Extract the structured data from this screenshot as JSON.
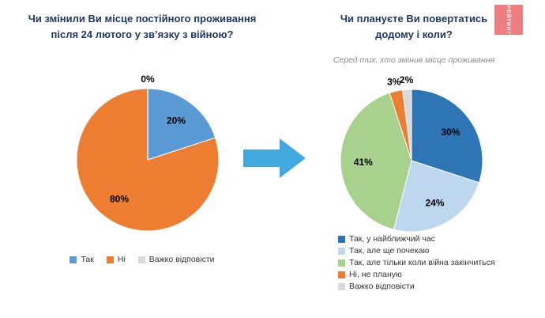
{
  "logo": {
    "text": "РЕЙТИНГ",
    "color": "#ee7f81"
  },
  "arrow": {
    "color": "#41a9dd"
  },
  "chart_data": [
    {
      "type": "pie",
      "title": "Чи змінили Ви місце постійного проживання після 24 лютого у зв’язку з війною?",
      "title_lines": [
        "Чи змінили Ви місце постійного проживання",
        "після 24 лютого у зв’язку з війною?"
      ],
      "labels": [
        "Так",
        "Ні",
        "Важко відповісти"
      ],
      "values": [
        20,
        80,
        0
      ],
      "unit": "%",
      "colors": [
        "#5b9bd5",
        "#ed7d31",
        "#d9d9d9"
      ],
      "legend_position": "bottom-horizontal"
    },
    {
      "type": "pie",
      "title": "Чи плануєте Ви повертатись додому і коли?",
      "title_lines": [
        "Чи плануєте Ви повертатись",
        "додому і коли?"
      ],
      "subtitle": "Серед тих, хто змінив місце проживання",
      "labels": [
        "Так, у найближчий час",
        "Так, але ще почекаю",
        "Так, але тільки коли війна закінчиться",
        "Ні, не планую",
        "Важко відповісти"
      ],
      "values": [
        30,
        24,
        41,
        3,
        2
      ],
      "unit": "%",
      "colors": [
        "#2e75b6",
        "#bdd7ee",
        "#a9d18e",
        "#ed7d31",
        "#d9d9d9"
      ],
      "legend_position": "bottom-vertical"
    }
  ]
}
